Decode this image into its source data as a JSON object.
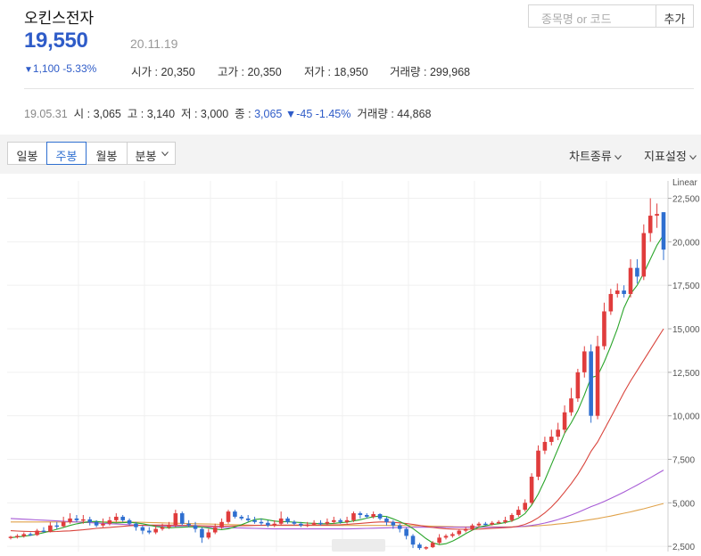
{
  "header": {
    "stock_name": "오킨스전자",
    "price": "19,550",
    "date": "20.11.19",
    "change_arrow": "▼",
    "change_amount": "1,100",
    "change_percent": "-5.33%",
    "summary": [
      {
        "label": "시가",
        "value": "20,350"
      },
      {
        "label": "고가",
        "value": "20,350"
      },
      {
        "label": "저가",
        "value": "18,950"
      },
      {
        "label": "거래량",
        "value": "299,968"
      }
    ]
  },
  "search": {
    "placeholder": "종목명 or 코드",
    "button_label": "추가"
  },
  "daily_info": {
    "date": "19.05.31",
    "open_label": "시",
    "open_value": "3,065",
    "high_label": "고",
    "high_value": "3,140",
    "low_label": "저",
    "low_value": "3,000",
    "close_label": "종",
    "close_value": "3,065",
    "change": "▼-45 -1.45%",
    "volume_label": "거래량",
    "volume_value": "44,868"
  },
  "toolbar": {
    "tabs": [
      "일봉",
      "주봉",
      "월봉",
      "분봉"
    ],
    "active_tab": "주봉",
    "chart_type_label": "차트종류",
    "indicator_label": "지표설정"
  },
  "colors": {
    "up": "#e03c3c",
    "down": "#2f6fd0",
    "ma5": "#2aa52a",
    "ma20": "#d9443c",
    "ma60": "#a75bd6",
    "ma120": "#e0a24a"
  },
  "chart_data": {
    "type": "candlestick",
    "scale_label": "Linear",
    "y_ticks": [
      2500,
      5000,
      7500,
      10000,
      12500,
      15000,
      17500,
      20000,
      22500
    ],
    "ylim": [
      2200,
      23500
    ],
    "candles": [
      [
        3000,
        3050,
        2900,
        3100
      ],
      [
        3050,
        3100,
        2950,
        3200
      ],
      [
        3080,
        3200,
        3000,
        3300
      ],
      [
        3200,
        3150,
        3100,
        3300
      ],
      [
        3150,
        3400,
        3100,
        3500
      ],
      [
        3400,
        3350,
        3300,
        3600
      ],
      [
        3350,
        3700,
        3300,
        3900
      ],
      [
        3700,
        3650,
        3500,
        3900
      ],
      [
        3650,
        3900,
        3600,
        4200
      ],
      [
        3900,
        4100,
        3800,
        4400
      ],
      [
        4100,
        4000,
        3900,
        4300
      ],
      [
        4000,
        4050,
        3800,
        4300
      ],
      [
        4050,
        3900,
        3700,
        4200
      ],
      [
        3900,
        3700,
        3600,
        4000
      ],
      [
        3700,
        3800,
        3600,
        4100
      ],
      [
        3800,
        4000,
        3700,
        4200
      ],
      [
        4000,
        4200,
        3900,
        4400
      ],
      [
        4200,
        4000,
        3900,
        4300
      ],
      [
        4000,
        3800,
        3700,
        4100
      ],
      [
        3800,
        3600,
        3400,
        3900
      ],
      [
        3600,
        3400,
        3200,
        3700
      ],
      [
        3400,
        3300,
        3200,
        3600
      ],
      [
        3300,
        3500,
        3200,
        3700
      ],
      [
        3500,
        3600,
        3400,
        3800
      ],
      [
        3600,
        3700,
        3500,
        3900
      ],
      [
        3700,
        4400,
        3600,
        4600
      ],
      [
        4400,
        3800,
        3700,
        4500
      ],
      [
        3800,
        3700,
        3600,
        4000
      ],
      [
        3700,
        3500,
        3300,
        3900
      ],
      [
        3500,
        3000,
        2700,
        3600
      ],
      [
        3000,
        3300,
        2900,
        3500
      ],
      [
        3300,
        3600,
        3200,
        3800
      ],
      [
        3600,
        3900,
        3500,
        4100
      ],
      [
        3900,
        4500,
        3800,
        4600
      ],
      [
        4500,
        4200,
        4100,
        4600
      ],
      [
        4200,
        4100,
        4000,
        4300
      ],
      [
        4100,
        4000,
        3900,
        4300
      ],
      [
        4000,
        3900,
        3800,
        4200
      ],
      [
        3900,
        3850,
        3700,
        4100
      ],
      [
        3850,
        3700,
        3600,
        4000
      ],
      [
        3700,
        3800,
        3600,
        4000
      ],
      [
        3800,
        4100,
        3700,
        4500
      ],
      [
        4100,
        3900,
        3800,
        4200
      ],
      [
        3900,
        3800,
        3700,
        4000
      ],
      [
        3800,
        3700,
        3600,
        3900
      ],
      [
        3700,
        3750,
        3600,
        3900
      ],
      [
        3750,
        3850,
        3700,
        4000
      ],
      [
        3850,
        3800,
        3700,
        4000
      ],
      [
        3800,
        3900,
        3700,
        4100
      ],
      [
        3900,
        4000,
        3800,
        4200
      ],
      [
        4000,
        3900,
        3800,
        4100
      ],
      [
        3900,
        4000,
        3800,
        4200
      ],
      [
        4000,
        4400,
        3900,
        4500
      ],
      [
        4400,
        4300,
        4100,
        4500
      ],
      [
        4300,
        4200,
        4100,
        4400
      ],
      [
        4200,
        4350,
        4100,
        4500
      ],
      [
        4350,
        4100,
        4000,
        4400
      ],
      [
        4100,
        3900,
        3700,
        4200
      ],
      [
        3900,
        3700,
        3500,
        4000
      ],
      [
        3700,
        3500,
        3300,
        3800
      ],
      [
        3500,
        3100,
        2900,
        3600
      ],
      [
        3100,
        2600,
        2400,
        3200
      ],
      [
        2600,
        2400,
        2300,
        2700
      ],
      [
        2400,
        2450,
        2300,
        2500
      ],
      [
        2450,
        2700,
        2400,
        2800
      ],
      [
        2700,
        3000,
        2600,
        3200
      ],
      [
        3000,
        3100,
        2900,
        3200
      ],
      [
        3100,
        3200,
        3000,
        3300
      ],
      [
        3200,
        3400,
        3100,
        3500
      ],
      [
        3400,
        3500,
        3300,
        3600
      ],
      [
        3500,
        3700,
        3400,
        3800
      ],
      [
        3700,
        3800,
        3600,
        3900
      ],
      [
        3800,
        3750,
        3700,
        3900
      ],
      [
        3750,
        3850,
        3700,
        3950
      ],
      [
        3850,
        3900,
        3800,
        4000
      ],
      [
        3900,
        4000,
        3800,
        4200
      ],
      [
        4000,
        4300,
        3900,
        4400
      ],
      [
        4300,
        4600,
        4200,
        4800
      ],
      [
        4600,
        5000,
        4500,
        5200
      ],
      [
        5000,
        6500,
        4900,
        6700
      ],
      [
        6500,
        8000,
        6300,
        8300
      ],
      [
        8000,
        8500,
        7800,
        8800
      ],
      [
        8500,
        8800,
        8300,
        9200
      ],
      [
        8800,
        9200,
        8600,
        9600
      ],
      [
        9200,
        10200,
        9000,
        10600
      ],
      [
        10200,
        11000,
        10000,
        11600
      ],
      [
        11000,
        12500,
        10800,
        12700
      ],
      [
        12500,
        13700,
        12200,
        14000
      ],
      [
        13700,
        10000,
        9600,
        14100
      ],
      [
        10000,
        14000,
        9800,
        14600
      ],
      [
        14000,
        16000,
        13800,
        16500
      ],
      [
        16000,
        17000,
        15800,
        17300
      ],
      [
        17000,
        17200,
        16800,
        17600
      ],
      [
        17200,
        17000,
        16800,
        17500
      ],
      [
        17000,
        18500,
        16800,
        19000
      ],
      [
        18500,
        18000,
        17600,
        19000
      ],
      [
        18000,
        20500,
        17800,
        21000
      ],
      [
        20500,
        21500,
        20000,
        22500
      ],
      [
        21500,
        21600,
        20800,
        22200
      ],
      [
        21700,
        19550,
        18950,
        21700
      ]
    ],
    "ma5": [
      3000,
      3040,
      3080,
      3130,
      3200,
      3280,
      3380,
      3480,
      3580,
      3700,
      3790,
      3860,
      3920,
      3930,
      3890,
      3870,
      3850,
      3860,
      3880,
      3850,
      3800,
      3720,
      3640,
      3600,
      3560,
      3580,
      3600,
      3620,
      3620,
      3610,
      3550,
      3480,
      3460,
      3510,
      3620,
      3740,
      3890,
      4040,
      4080,
      4010,
      3950,
      3920,
      3910,
      3890,
      3870,
      3840,
      3820,
      3800,
      3800,
      3820,
      3860,
      3890,
      3960,
      4030,
      4120,
      4200,
      4240,
      4210,
      4080,
      3920,
      3750,
      3520,
      3240,
      2940,
      2700,
      2600,
      2650,
      2800,
      3000,
      3230,
      3430,
      3600,
      3680,
      3750,
      3800,
      3870,
      3960,
      4120,
      4380,
      4870,
      5500,
      6300,
      7200,
      8100,
      9000,
      9600,
      10300,
      11200,
      12200,
      12300,
      13100,
      14000,
      15000,
      16200,
      17000,
      17500,
      18200,
      19000,
      19800,
      20400
    ],
    "ma20": [
      3400,
      3380,
      3360,
      3350,
      3340,
      3340,
      3340,
      3350,
      3370,
      3390,
      3420,
      3450,
      3490,
      3530,
      3560,
      3590,
      3620,
      3650,
      3680,
      3700,
      3710,
      3720,
      3720,
      3720,
      3720,
      3720,
      3710,
      3700,
      3690,
      3680,
      3670,
      3660,
      3660,
      3660,
      3670,
      3680,
      3690,
      3700,
      3710,
      3720,
      3720,
      3720,
      3720,
      3720,
      3720,
      3720,
      3720,
      3720,
      3720,
      3730,
      3740,
      3760,
      3790,
      3820,
      3850,
      3880,
      3900,
      3900,
      3880,
      3850,
      3810,
      3760,
      3700,
      3640,
      3580,
      3540,
      3510,
      3490,
      3480,
      3480,
      3480,
      3490,
      3510,
      3530,
      3550,
      3570,
      3600,
      3660,
      3760,
      3920,
      4140,
      4420,
      4760,
      5160,
      5620,
      6100,
      6640,
      7260,
      7960,
      8500,
      9200,
      9900,
      10620,
      11340,
      12000,
      12600,
      13200,
      13800,
      14400,
      15000
    ],
    "ma60": [
      4100,
      4080,
      4060,
      4040,
      4020,
      4000,
      3980,
      3960,
      3940,
      3920,
      3900,
      3880,
      3860,
      3840,
      3820,
      3800,
      3780,
      3760,
      3740,
      3720,
      3700,
      3690,
      3680,
      3670,
      3660,
      3650,
      3640,
      3630,
      3620,
      3610,
      3600,
      3590,
      3580,
      3570,
      3560,
      3550,
      3540,
      3530,
      3520,
      3510,
      3500,
      3500,
      3500,
      3500,
      3500,
      3500,
      3500,
      3500,
      3500,
      3500,
      3500,
      3500,
      3510,
      3520,
      3530,
      3540,
      3550,
      3560,
      3570,
      3580,
      3590,
      3600,
      3600,
      3600,
      3600,
      3600,
      3600,
      3600,
      3600,
      3600,
      3600,
      3600,
      3600,
      3600,
      3600,
      3600,
      3610,
      3630,
      3660,
      3700,
      3760,
      3840,
      3930,
      4040,
      4160,
      4300,
      4450,
      4610,
      4780,
      4920,
      5080,
      5250,
      5430,
      5620,
      5820,
      6020,
      6230,
      6440,
      6660,
      6880
    ],
    "ma120": [
      3900,
      3900,
      3900,
      3900,
      3900,
      3900,
      3900,
      3900,
      3900,
      3900,
      3900,
      3900,
      3900,
      3900,
      3900,
      3900,
      3900,
      3900,
      3900,
      3890,
      3880,
      3870,
      3860,
      3850,
      3840,
      3830,
      3820,
      3810,
      3800,
      3790,
      3780,
      3770,
      3760,
      3750,
      3740,
      3730,
      3720,
      3710,
      3700,
      3700,
      3700,
      3700,
      3700,
      3700,
      3700,
      3700,
      3700,
      3700,
      3700,
      3700,
      3700,
      3700,
      3700,
      3700,
      3700,
      3700,
      3700,
      3700,
      3700,
      3700,
      3700,
      3690,
      3680,
      3670,
      3660,
      3650,
      3640,
      3630,
      3620,
      3620,
      3620,
      3620,
      3620,
      3620,
      3620,
      3620,
      3620,
      3630,
      3640,
      3660,
      3680,
      3710,
      3740,
      3780,
      3820,
      3870,
      3920,
      3980,
      4040,
      4100,
      4170,
      4240,
      4320,
      4400,
      4480,
      4570,
      4660,
      4760,
      4860,
      4960
    ]
  }
}
